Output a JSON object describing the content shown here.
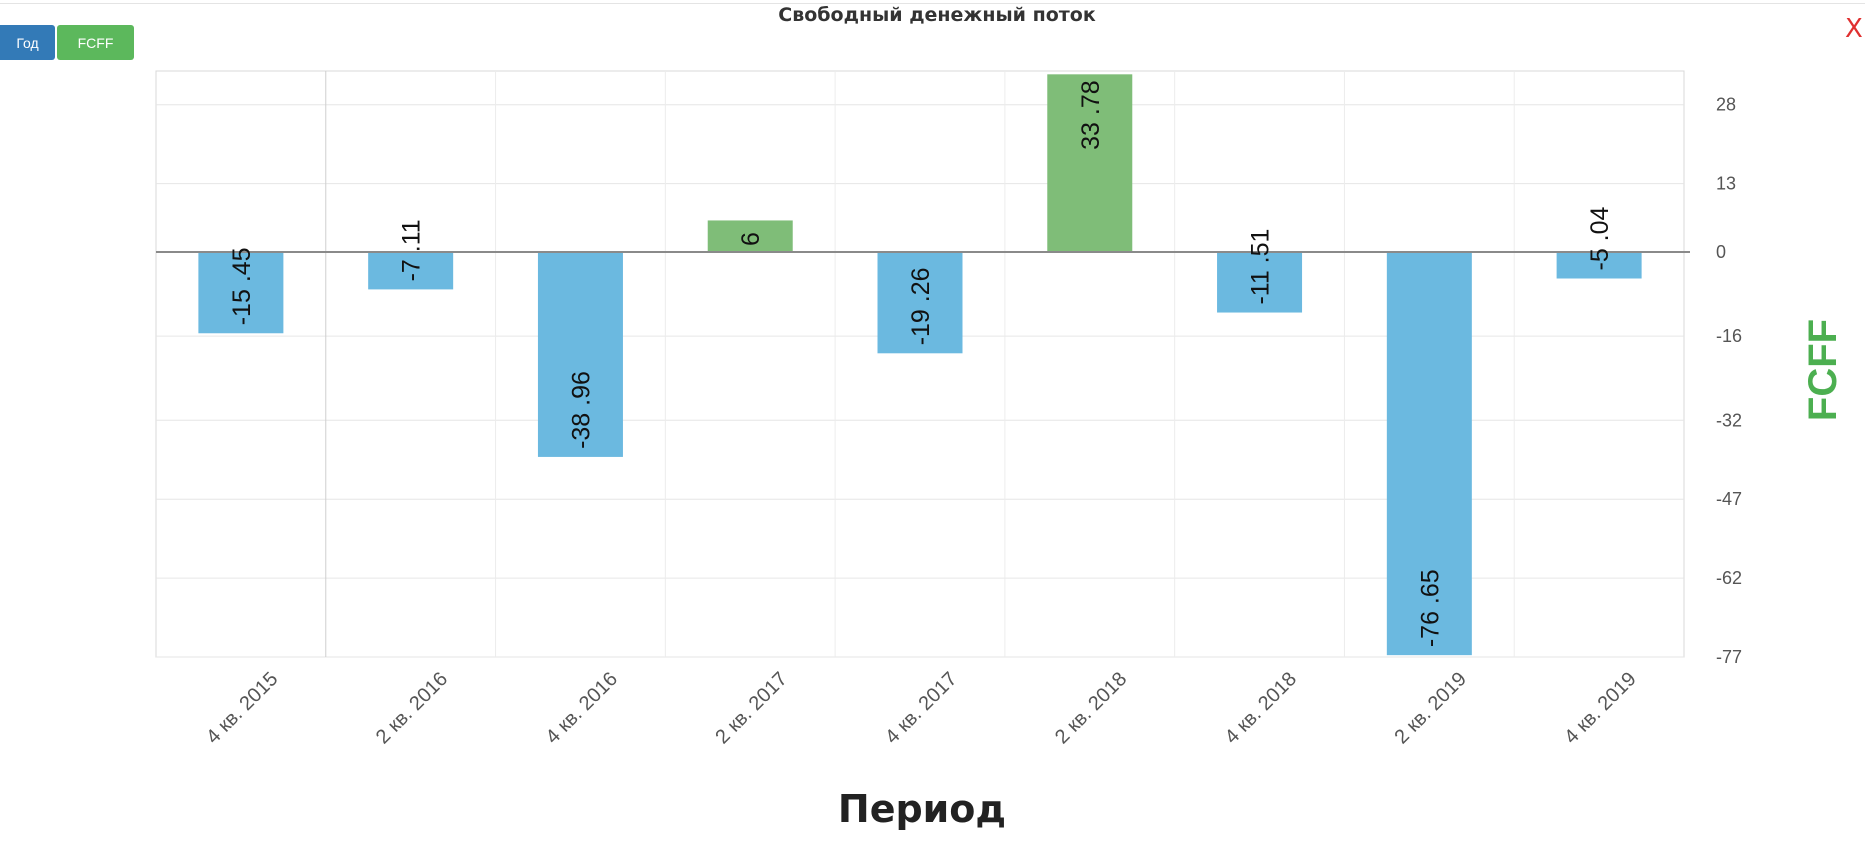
{
  "toolbar": {
    "year_label": "Год",
    "metric_label": "FCFF",
    "close_label": "X"
  },
  "colors": {
    "negative": "#6bb9e0",
    "positive": "#7fbd78",
    "ylabel": "#4caf50",
    "year_button": "#337ab7",
    "metric_button": "#5cb85c",
    "close": "#e03030"
  },
  "chart_data": {
    "type": "bar",
    "title": "Свободный денежный поток",
    "xlabel": "Период",
    "ylabel": "FCFF",
    "categories": [
      "4 кв. 2015",
      "2 кв. 2016",
      "4 кв. 2016",
      "2 кв. 2017",
      "4 кв. 2017",
      "2 кв. 2018",
      "4 кв. 2018",
      "2 кв. 2019",
      "4 кв. 2019"
    ],
    "values": [
      -15.45,
      -7.11,
      -38.96,
      6,
      -19.26,
      33.78,
      -11.51,
      -76.65,
      -5.04
    ],
    "value_labels": [
      "-15 .45",
      "-7 .11",
      "-38 .96",
      "6",
      "-19 .26",
      "33 .78",
      "-11 .51",
      "-76 .65",
      "-5 .04"
    ],
    "yticks": [
      28,
      13,
      0,
      -16,
      -32,
      -47,
      -62,
      -77
    ],
    "ylim": [
      -77,
      34
    ],
    "y_axis_side": "right",
    "grid": true
  }
}
